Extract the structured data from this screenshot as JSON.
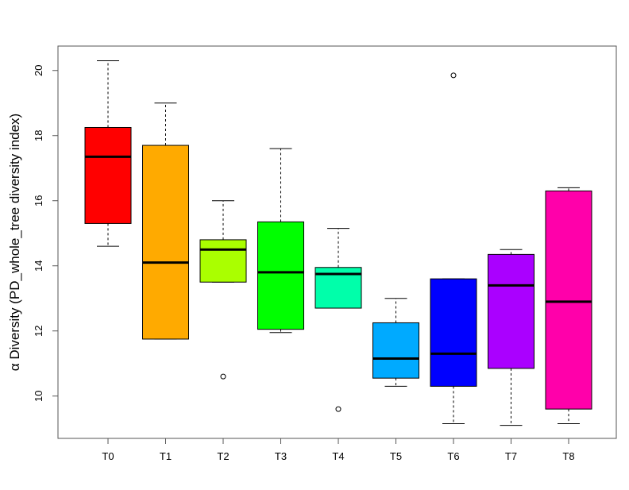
{
  "chart_data": {
    "type": "boxplot",
    "title": "",
    "xlabel": "",
    "ylabel": "α Diversity (PD_whole_tree diversity index)",
    "ylim": [
      8.7,
      20.75
    ],
    "yticks": [
      10,
      12,
      14,
      16,
      18,
      20
    ],
    "grid": false,
    "categories": [
      "T0",
      "T1",
      "T2",
      "T3",
      "T4",
      "T5",
      "T6",
      "T7",
      "T8"
    ],
    "colors": [
      "#FF0000",
      "#FFAA00",
      "#AAFF00",
      "#00FF00",
      "#00FFAA",
      "#00AAFF",
      "#0000FF",
      "#AA00FF",
      "#FF00AA"
    ],
    "boxes": [
      {
        "category": "T0",
        "whisker_low": 14.6,
        "q1": 15.3,
        "median": 17.35,
        "q3": 18.25,
        "whisker_high": 20.3,
        "outliers": []
      },
      {
        "category": "T1",
        "whisker_low": 11.75,
        "q1": 11.75,
        "median": 14.1,
        "q3": 17.7,
        "whisker_high": 19.0,
        "outliers": []
      },
      {
        "category": "T2",
        "whisker_low": 13.5,
        "q1": 13.5,
        "median": 14.5,
        "q3": 14.8,
        "whisker_high": 16.0,
        "outliers": [
          10.6
        ]
      },
      {
        "category": "T3",
        "whisker_low": 11.95,
        "q1": 12.05,
        "median": 13.8,
        "q3": 15.35,
        "whisker_high": 17.6,
        "outliers": []
      },
      {
        "category": "T4",
        "whisker_low": 12.7,
        "q1": 12.7,
        "median": 13.75,
        "q3": 13.95,
        "whisker_high": 15.15,
        "outliers": [
          9.6
        ]
      },
      {
        "category": "T5",
        "whisker_low": 10.3,
        "q1": 10.55,
        "median": 11.15,
        "q3": 12.25,
        "whisker_high": 13.0,
        "outliers": []
      },
      {
        "category": "T6",
        "whisker_low": 9.15,
        "q1": 10.3,
        "median": 11.3,
        "q3": 13.6,
        "whisker_high": 13.6,
        "outliers": [
          19.85
        ]
      },
      {
        "category": "T7",
        "whisker_low": 9.1,
        "q1": 10.85,
        "median": 13.4,
        "q3": 14.35,
        "whisker_high": 14.5,
        "outliers": []
      },
      {
        "category": "T8",
        "whisker_low": 9.15,
        "q1": 9.6,
        "median": 12.9,
        "q3": 16.3,
        "whisker_high": 16.4,
        "outliers": []
      }
    ]
  }
}
